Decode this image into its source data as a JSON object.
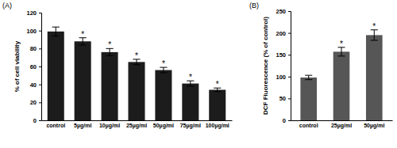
{
  "chart_data": [
    {
      "type": "bar",
      "panel_label": "(A)",
      "y_label": "% of cell viability",
      "categories": [
        "control",
        "5µg/ml",
        "10µg/ml",
        "25µg/ml",
        "50µg/ml",
        "75µg/ml",
        "100µg/ml"
      ],
      "values": [
        99,
        88,
        76,
        65,
        56,
        41,
        34
      ],
      "errors": [
        5,
        4,
        4,
        3,
        3,
        3,
        2
      ],
      "annotations": [
        null,
        "*",
        "*",
        "*",
        "*",
        "*",
        "*"
      ],
      "color": "#1c1c1c",
      "ylim": [
        0,
        120
      ],
      "yticks": [
        0,
        20,
        40,
        60,
        80,
        100,
        120
      ]
    },
    {
      "type": "bar",
      "panel_label": "(B)",
      "y_label": "DCF Fluorescence (% of control)",
      "categories": [
        "control",
        "25µg/ml",
        "50µg/ml"
      ],
      "values": [
        98,
        157,
        195
      ],
      "errors": [
        5,
        10,
        12
      ],
      "annotations": [
        null,
        "*",
        "*"
      ],
      "color": "#565656",
      "ylim": [
        0,
        250
      ],
      "yticks": [
        0,
        50,
        100,
        150,
        200,
        250
      ]
    }
  ]
}
